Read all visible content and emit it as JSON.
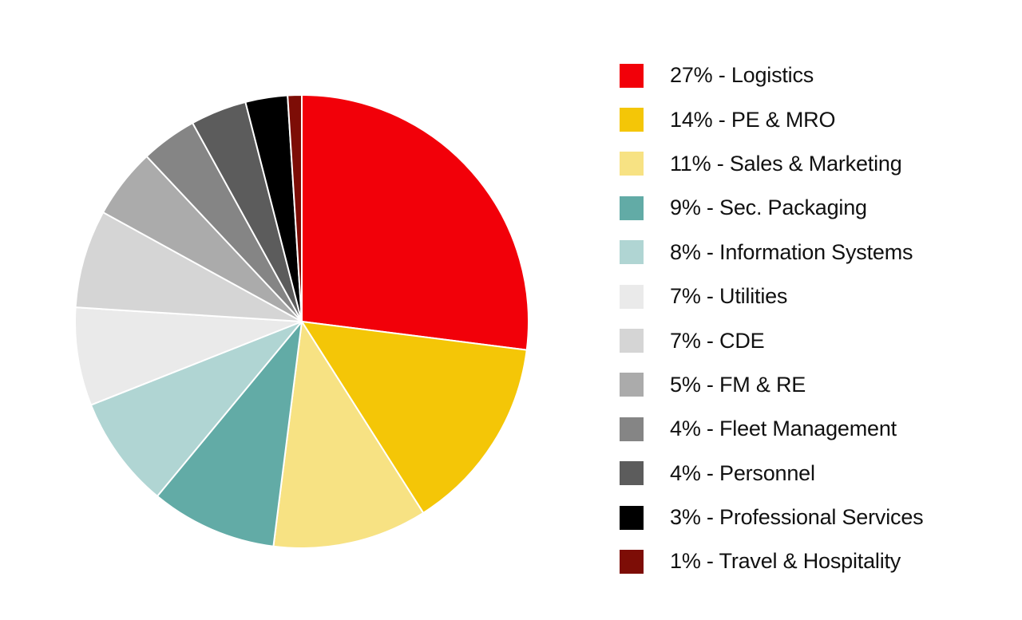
{
  "chart_data": {
    "type": "pie",
    "title": "",
    "slices": [
      {
        "label": "27% - Logistics",
        "value": 27,
        "color": "#f20009"
      },
      {
        "label": "14% - PE & MRO",
        "value": 14,
        "color": "#f4c607"
      },
      {
        "label": "11% - Sales & Marketing",
        "value": 11,
        "color": "#f7e283"
      },
      {
        "label": "9% - Sec. Packaging",
        "value": 9,
        "color": "#62aba6"
      },
      {
        "label": "8% - Information Systems",
        "value": 8,
        "color": "#b0d5d3"
      },
      {
        "label": "7% - Utilities",
        "value": 7,
        "color": "#eaeaea"
      },
      {
        "label": "7% - CDE",
        "value": 7,
        "color": "#d5d5d5"
      },
      {
        "label": "5% - FM & RE",
        "value": 5,
        "color": "#ababab"
      },
      {
        "label": "4% - Fleet Management",
        "value": 4,
        "color": "#858585"
      },
      {
        "label": "4% - Personnel",
        "value": 4,
        "color": "#5c5c5c"
      },
      {
        "label": "3% - Professional Services",
        "value": 3,
        "color": "#000000"
      },
      {
        "label": "1% - Travel & Hospitality",
        "value": 1,
        "color": "#7d0d06"
      }
    ],
    "start_angle": "12 o'clock",
    "direction": "clockwise",
    "legend_position": "right"
  }
}
